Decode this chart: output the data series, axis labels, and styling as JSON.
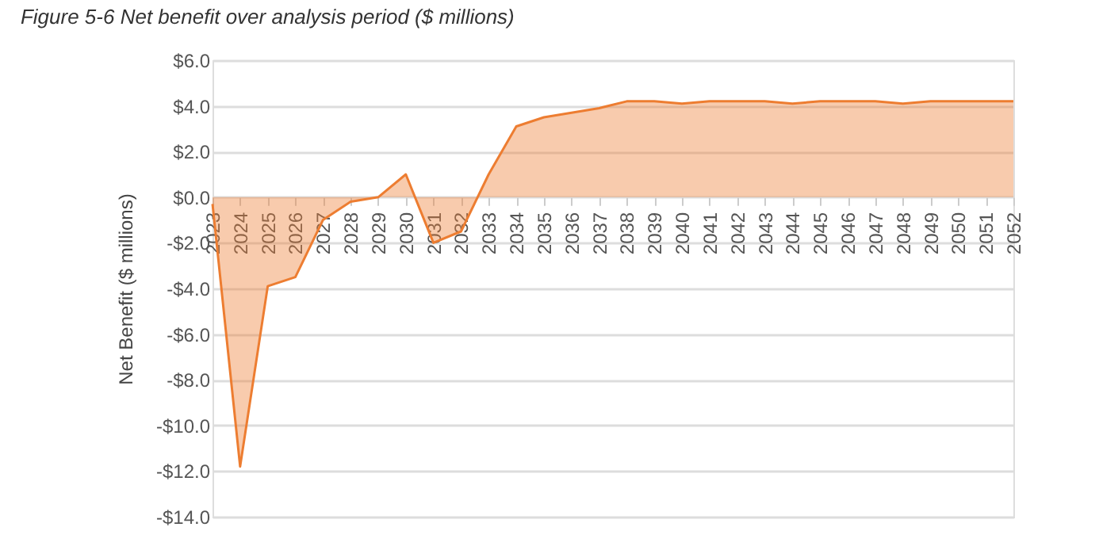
{
  "chart_data": {
    "type": "area",
    "title": "Figure 5-6 Net benefit over analysis period ($ millions)",
    "ylabel": "Net Benefit ($ millions)",
    "categories": [
      "2023",
      "2024",
      "2025",
      "2026",
      "2027",
      "2028",
      "2029",
      "2030",
      "2031",
      "2032",
      "2033",
      "2034",
      "2035",
      "2036",
      "2037",
      "2038",
      "2039",
      "2040",
      "2041",
      "2042",
      "2043",
      "2044",
      "2045",
      "2046",
      "2047",
      "2048",
      "2049",
      "2050",
      "2051",
      "2052"
    ],
    "series": [
      {
        "color": "#ed7d31",
        "values": [
          -0.3,
          -11.8,
          -3.9,
          -3.5,
          -1.0,
          -0.2,
          0.0,
          1.0,
          -2.0,
          -1.5,
          1.0,
          3.1,
          3.5,
          3.7,
          3.9,
          4.2,
          4.2,
          4.1,
          4.2,
          4.2,
          4.2,
          4.1,
          4.2,
          4.2,
          4.2,
          4.1,
          4.2,
          4.2,
          4.2,
          4.2
        ]
      }
    ],
    "ylim": [
      -14,
      6
    ],
    "yticks": [
      {
        "value": -14,
        "label": "-$14.0"
      },
      {
        "value": -12,
        "label": "-$12.0"
      },
      {
        "value": -10,
        "label": "-$10.0"
      },
      {
        "value": -8,
        "label": "-$8.0"
      },
      {
        "value": -6,
        "label": "-$6.0"
      },
      {
        "value": -4,
        "label": "-$4.0"
      },
      {
        "value": -2,
        "label": "-$2.0"
      },
      {
        "value": 0,
        "label": "$0.0"
      },
      {
        "value": 2,
        "label": "$2.0"
      },
      {
        "value": 4,
        "label": "$4.0"
      },
      {
        "value": 6,
        "label": "$6.0"
      }
    ],
    "grid": "y",
    "legend": false
  }
}
